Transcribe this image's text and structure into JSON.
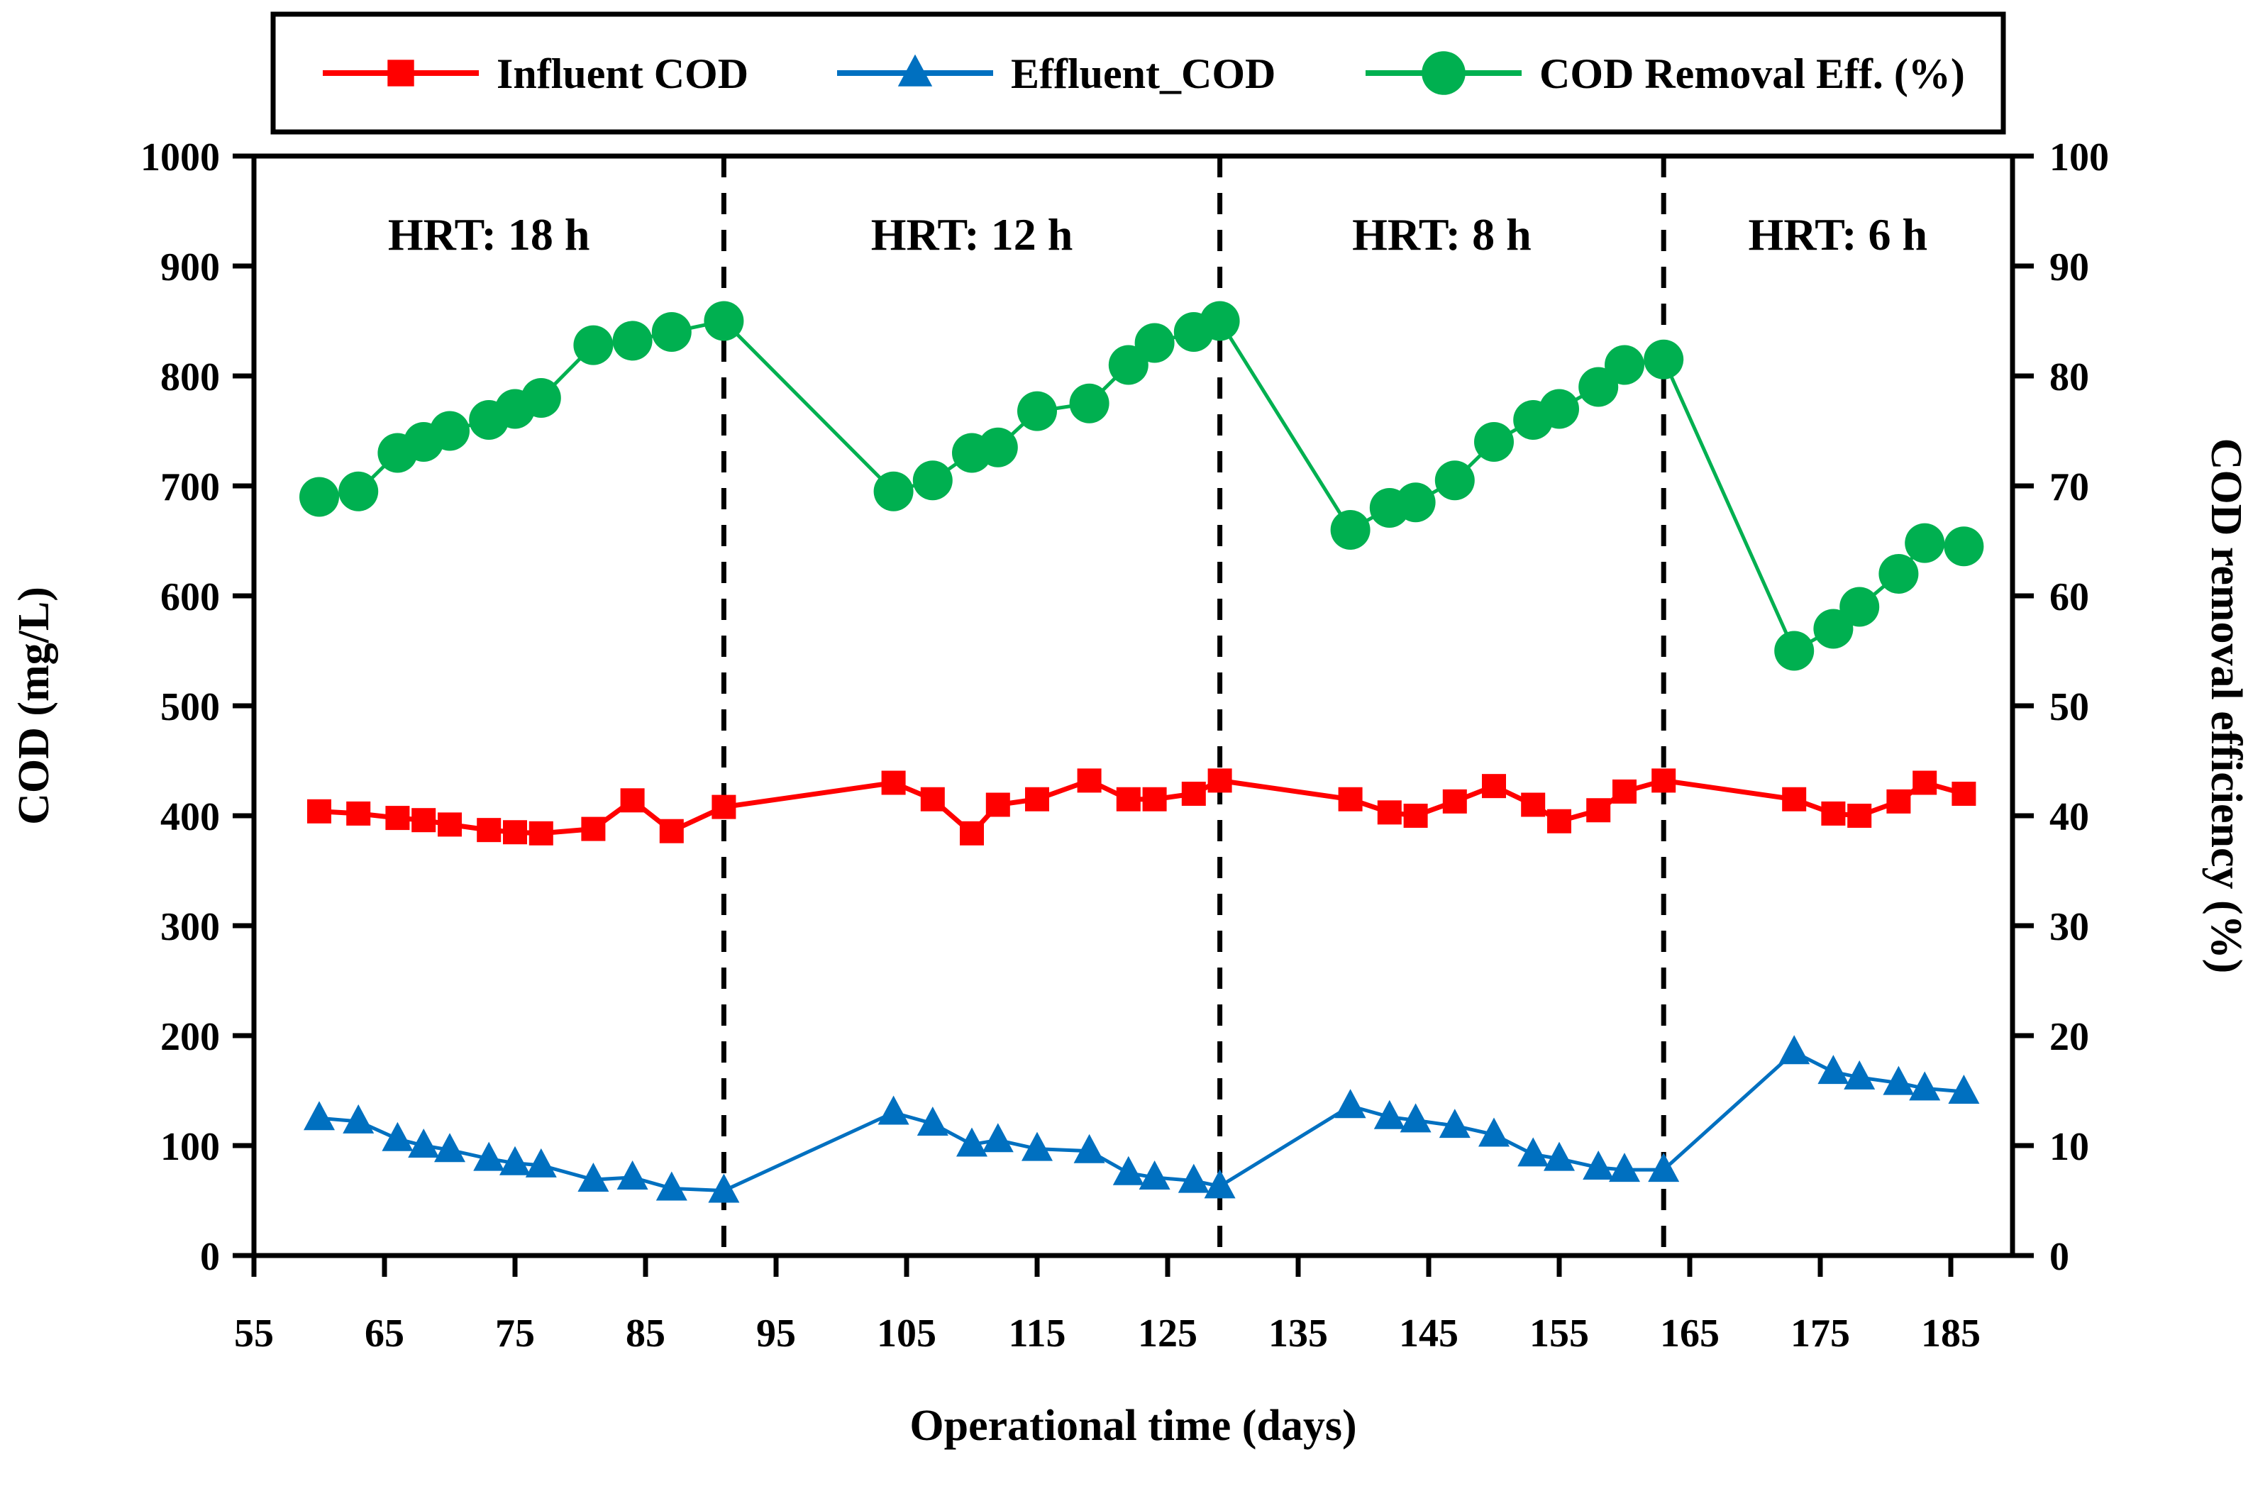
{
  "chart_data": {
    "type": "line",
    "title": "",
    "xlabel": "Operational time (days)",
    "ylabel_left": "COD (mg/L)",
    "ylabel_right": "COD removal efficiency (%)",
    "xlim": [
      55,
      189.7
    ],
    "ylim_left": [
      0,
      1000
    ],
    "ylim_right": [
      0,
      100
    ],
    "x_ticks": [
      55,
      65,
      75,
      85,
      95,
      105,
      115,
      125,
      135,
      145,
      155,
      165,
      175,
      185
    ],
    "y_ticks_left": [
      0,
      100,
      200,
      300,
      400,
      500,
      600,
      700,
      800,
      900,
      1000
    ],
    "y_ticks_right": [
      0,
      10,
      20,
      30,
      40,
      50,
      60,
      70,
      80,
      90,
      100
    ],
    "grid": false,
    "legend_position": "top",
    "colors": {
      "influent": "#FF0000",
      "effluent": "#0070C0",
      "removal": "#00B050",
      "axis": "#000000",
      "phase_line": "#000000"
    },
    "x": [
      60,
      63,
      66,
      68,
      70,
      73,
      75,
      77,
      81,
      84,
      87,
      91,
      104,
      107,
      110,
      112,
      115,
      119,
      122,
      124,
      127,
      129,
      139,
      142,
      144,
      147,
      150,
      153,
      155,
      158,
      160,
      163,
      173,
      176,
      178,
      181,
      183,
      186
    ],
    "series": [
      {
        "name": "Influent COD",
        "marker": "square",
        "color": "#FF0000",
        "axis": "left",
        "values": [
          404,
          402,
          398,
          396,
          392,
          387,
          385,
          384,
          388,
          414,
          386,
          408,
          430,
          415,
          384,
          410,
          415,
          432,
          415,
          415,
          420,
          432,
          415,
          403,
          400,
          413,
          427,
          410,
          395,
          405,
          422,
          432,
          415,
          402,
          400,
          413,
          430,
          420
        ]
      },
      {
        "name": "Effluent_COD",
        "marker": "triangle",
        "color": "#0070C0",
        "axis": "left",
        "values": [
          125,
          122,
          106,
          100,
          96,
          88,
          84,
          82,
          69,
          71,
          61,
          59,
          130,
          120,
          101,
          105,
          97,
          95,
          75,
          71,
          68,
          63,
          136,
          126,
          123,
          118,
          110,
          92,
          88,
          80,
          78,
          78,
          185,
          167,
          162,
          157,
          152,
          149
        ]
      },
      {
        "name": "COD Removal Eff. (%)",
        "marker": "circle",
        "color": "#00B050",
        "axis": "right",
        "values": [
          69,
          69.5,
          73,
          74,
          75,
          76,
          77,
          78,
          82.8,
          83.2,
          84,
          85,
          69.5,
          70.5,
          73,
          73.5,
          76.8,
          77.5,
          81,
          83,
          84,
          85,
          66,
          68,
          68.5,
          70.5,
          74,
          76,
          77,
          79,
          81,
          81.5,
          55,
          57,
          59,
          62,
          64.8,
          64.5
        ]
      }
    ],
    "phase_boundaries_days": [
      91,
      129,
      163
    ],
    "phase_labels": [
      {
        "text": "HRT: 18 h",
        "from_day": 55,
        "to_day": 91
      },
      {
        "text": "HRT: 12 h",
        "from_day": 91,
        "to_day": 129
      },
      {
        "text": "HRT: 8 h",
        "from_day": 129,
        "to_day": 163
      },
      {
        "text": "HRT: 6 h",
        "from_day": 163,
        "to_day": 189.7
      }
    ]
  },
  "legend": {
    "items": [
      {
        "label": "Influent COD"
      },
      {
        "label": "Effluent_COD"
      },
      {
        "label": "COD Removal Eff. (%)"
      }
    ]
  }
}
